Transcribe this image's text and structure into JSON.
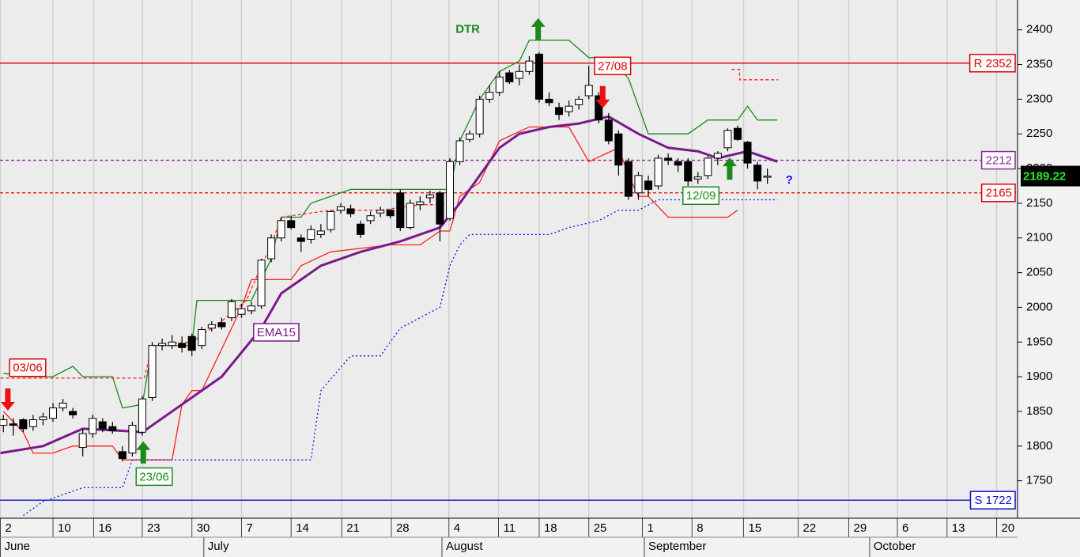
{
  "chart_data": {
    "type": "candlestick",
    "xlim": [
      -0.34,
      102.05
    ],
    "ylim": [
      1696,
      2443
    ],
    "yticks": [
      1750,
      1800,
      1850,
      1900,
      1950,
      2000,
      2050,
      2100,
      2150,
      2200,
      2250,
      2300,
      2350,
      2400
    ],
    "xticks": [
      {
        "value": -0.3,
        "label": "2"
      },
      {
        "value": 5,
        "label": "10"
      },
      {
        "value": 9.1,
        "label": "16"
      },
      {
        "value": 14,
        "label": "23"
      },
      {
        "value": 19,
        "label": "30"
      },
      {
        "value": 24,
        "label": "7"
      },
      {
        "value": 29,
        "label": "14"
      },
      {
        "value": 34.1,
        "label": "21"
      },
      {
        "value": 39.1,
        "label": "28"
      },
      {
        "value": 44.9,
        "label": "4"
      },
      {
        "value": 49.9,
        "label": "11"
      },
      {
        "value": 54,
        "label": "18"
      },
      {
        "value": 59,
        "label": "25"
      },
      {
        "value": 64.4,
        "label": "1"
      },
      {
        "value": 69.4,
        "label": "8"
      },
      {
        "value": 74.6,
        "label": "15"
      },
      {
        "value": 80.1,
        "label": "22"
      },
      {
        "value": 85.2,
        "label": "29"
      },
      {
        "value": 90.1,
        "label": "6"
      },
      {
        "value": 95.1,
        "label": "13"
      },
      {
        "value": 100.1,
        "label": "20"
      }
    ],
    "months": [
      {
        "value": -0.3,
        "label": "June"
      },
      {
        "value": 20.2,
        "label": "July"
      },
      {
        "value": 44.2,
        "label": "August"
      },
      {
        "value": 64.6,
        "label": "September"
      },
      {
        "value": 87.3,
        "label": "October"
      }
    ],
    "grid": true,
    "up_color": "#ffffff",
    "down_color": "#000000",
    "x": [
      0,
      1,
      2,
      3,
      4,
      5,
      6,
      7,
      8,
      9,
      10,
      11,
      12,
      13,
      14,
      15,
      16,
      17,
      18,
      19,
      20,
      21,
      22,
      23,
      24,
      25,
      26,
      27,
      28,
      29,
      30,
      31,
      32,
      33,
      34,
      35,
      36,
      37,
      38,
      39,
      40,
      41,
      42,
      43,
      44,
      45,
      46,
      47,
      48,
      49,
      50,
      51,
      52,
      53,
      54,
      55,
      56,
      57,
      58,
      59,
      60,
      61,
      62,
      63,
      64,
      65,
      66,
      67,
      68,
      69,
      70,
      71,
      72,
      73,
      74,
      75,
      76,
      77
    ],
    "open": [
      1830,
      1832,
      1838,
      1828,
      1838,
      1840,
      1855,
      1850,
      1798,
      1818,
      1835,
      1828,
      1792,
      1790,
      1820,
      1870,
      1945,
      1945,
      1948,
      1958,
      1945,
      1970,
      1978,
      1985,
      1990,
      1995,
      2002,
      2070,
      2100,
      2125,
      2100,
      2098,
      2105,
      2112,
      2140,
      2142,
      2120,
      2125,
      2136,
      2140,
      2165,
      2115,
      2148,
      2158,
      2165,
      2128,
      2210,
      2242,
      2250,
      2300,
      2310,
      2338,
      2330,
      2340,
      2365,
      2300,
      2288,
      2282,
      2292,
      2305,
      2305,
      2270,
      2250,
      2210,
      2165,
      2182,
      2175,
      2215,
      2210,
      2210,
      2185,
      2190,
      2215,
      2230,
      2258,
      2238,
      2205,
      2188
    ],
    "high": [
      1845,
      1840,
      1840,
      1845,
      1848,
      1862,
      1868,
      1855,
      1825,
      1845,
      1840,
      1835,
      1800,
      1835,
      1872,
      1950,
      1955,
      1960,
      1958,
      1962,
      1972,
      1980,
      1985,
      2012,
      2005,
      2008,
      2070,
      2105,
      2130,
      2132,
      2105,
      2118,
      2120,
      2140,
      2150,
      2148,
      2125,
      2138,
      2145,
      2142,
      2170,
      2155,
      2160,
      2168,
      2168,
      2215,
      2245,
      2255,
      2305,
      2320,
      2340,
      2342,
      2350,
      2362,
      2368,
      2310,
      2295,
      2298,
      2305,
      2348,
      2310,
      2280,
      2255,
      2215,
      2195,
      2190,
      2220,
      2222,
      2215,
      2215,
      2195,
      2218,
      2225,
      2258,
      2262,
      2240,
      2210,
      2200
    ],
    "low": [
      1820,
      1815,
      1820,
      1822,
      1830,
      1835,
      1850,
      1840,
      1785,
      1812,
      1820,
      1818,
      1778,
      1785,
      1815,
      1865,
      1938,
      1940,
      1935,
      1930,
      1940,
      1965,
      1968,
      1980,
      1985,
      1990,
      1998,
      2065,
      2095,
      2112,
      2080,
      2092,
      2100,
      2108,
      2135,
      2130,
      2100,
      2120,
      2130,
      2128,
      2110,
      2112,
      2140,
      2150,
      2095,
      2125,
      2205,
      2238,
      2245,
      2295,
      2305,
      2322,
      2320,
      2335,
      2295,
      2290,
      2270,
      2275,
      2285,
      2300,
      2265,
      2235,
      2190,
      2155,
      2155,
      2160,
      2170,
      2205,
      2195,
      2175,
      2178,
      2185,
      2205,
      2225,
      2240,
      2200,
      2170,
      2178
    ],
    "close": [
      1838,
      1830,
      1825,
      1838,
      1842,
      1855,
      1862,
      1845,
      1818,
      1840,
      1825,
      1822,
      1782,
      1830,
      1868,
      1945,
      1948,
      1950,
      1942,
      1938,
      1968,
      1975,
      1972,
      2008,
      1998,
      2002,
      2068,
      2100,
      2125,
      2115,
      2095,
      2112,
      2110,
      2138,
      2145,
      2135,
      2105,
      2132,
      2140,
      2132,
      2115,
      2150,
      2152,
      2162,
      2120,
      2210,
      2240,
      2250,
      2300,
      2310,
      2332,
      2325,
      2340,
      2355,
      2300,
      2295,
      2278,
      2290,
      2300,
      2320,
      2270,
      2240,
      2205,
      2160,
      2190,
      2170,
      2215,
      2212,
      2205,
      2182,
      2188,
      2215,
      2222,
      2255,
      2242,
      2208,
      2182,
      2189.22
    ],
    "last_price": 2189.22,
    "lines": [
      {
        "color": "#1a8a1a",
        "dash": "solid",
        "weight": "normal",
        "x": [
          0,
          2,
          5,
          7,
          8,
          11,
          12,
          14,
          15,
          19,
          19.5,
          25,
          27,
          28,
          30,
          31,
          33,
          35,
          45,
          46,
          48,
          50,
          52,
          53,
          57,
          59,
          61,
          63,
          65,
          69,
          71,
          74,
          75,
          76,
          78
        ],
        "values": [
          1905,
          1900,
          1900,
          1915,
          1900,
          1900,
          1855,
          1860,
          1945,
          1945,
          2010,
          2010,
          2070,
          2130,
          2130,
          2150,
          2160,
          2170,
          2170,
          2240,
          2300,
          2340,
          2355,
          2385,
          2385,
          2360,
          2360,
          2330,
          2250,
          2250,
          2270,
          2270,
          2290,
          2270,
          2270
        ]
      },
      {
        "color": "#ff2020",
        "dash": "solid",
        "weight": "normal",
        "x": [
          0,
          2,
          3,
          5,
          7,
          11,
          12,
          14,
          17,
          18,
          19,
          20,
          24,
          25,
          29,
          30,
          33,
          39,
          42,
          44,
          45,
          46,
          48,
          50,
          53,
          57,
          59,
          62,
          63,
          64,
          65,
          67,
          73,
          74
        ],
        "values": [
          1850,
          1820,
          1790,
          1790,
          1800,
          1800,
          1780,
          1780,
          1780,
          1860,
          1880,
          1880,
          2000,
          2040,
          2040,
          2060,
          2080,
          2090,
          2090,
          2110,
          2110,
          2160,
          2180,
          2240,
          2260,
          2260,
          2210,
          2230,
          2190,
          2160,
          2160,
          2130,
          2130,
          2140
        ]
      },
      {
        "color": "#ff2020",
        "dash": "dashed",
        "weight": "normal",
        "x": [
          -0.3,
          14.2,
          15,
          19,
          22,
          24.5,
          26,
          27,
          28,
          33,
          38,
          42,
          44.5
        ],
        "values": [
          1898,
          1898,
          1945,
          1950,
          1980,
          2010,
          2060,
          2090,
          2130,
          2140,
          2140,
          2148,
          2148
        ]
      },
      {
        "color": "#ff2020",
        "dash": "dashed",
        "weight": "normal",
        "x": [
          73.4,
          74.2,
          74.2,
          78.1
        ],
        "values": [
          2343,
          2343,
          2328,
          2328
        ]
      },
      {
        "color": "#1010ee",
        "dash": "dotted",
        "weight": "normal",
        "x": [
          2,
          4,
          6,
          8,
          12,
          13,
          14,
          31,
          32,
          35,
          38,
          40,
          44,
          45,
          46,
          47,
          55,
          57,
          60,
          62,
          64,
          66,
          78
        ],
        "values": [
          1700,
          1720,
          1730,
          1740,
          1740,
          1780,
          1780,
          1780,
          1880,
          1930,
          1930,
          1970,
          2000,
          2060,
          2090,
          2105,
          2105,
          2115,
          2125,
          2140,
          2140,
          2155,
          2155
        ]
      },
      {
        "color": "#7a1a8a",
        "dash": "solid",
        "weight": "bold",
        "x": [
          -0.3,
          4,
          8,
          12,
          14,
          18,
          22,
          26,
          28,
          32,
          36,
          40,
          44,
          46,
          48,
          50,
          52,
          55,
          58,
          61,
          64,
          67,
          70,
          72,
          75,
          78
        ],
        "values": [
          1790,
          1800,
          1825,
          1822,
          1820,
          1860,
          1900,
          1970,
          2020,
          2060,
          2080,
          2095,
          2115,
          2150,
          2190,
          2230,
          2250,
          2260,
          2265,
          2275,
          2250,
          2230,
          2225,
          2215,
          2225,
          2210
        ]
      }
    ],
    "levels": [
      {
        "value": 2352,
        "label": "R 2352",
        "color": "#e00000",
        "dash": "solid"
      },
      {
        "value": 2212,
        "label": "2212",
        "color": "#8a2a9a",
        "dash": "dashed"
      },
      {
        "value": 2165,
        "label": "2165",
        "color": "#e00000",
        "dash": "dashed"
      },
      {
        "value": 1722,
        "label": "S 1722",
        "color": "#1010cc",
        "dash": "solid"
      }
    ],
    "annotations": [
      {
        "text": "03/06",
        "x": 2.45,
        "y": 1913,
        "color": "#e00000",
        "box": true
      },
      {
        "text": "23/06",
        "x": 15.2,
        "y": 1756,
        "color": "#1a8a1a",
        "box": true
      },
      {
        "text": "27/08",
        "x": 61.4,
        "y": 2348,
        "color": "#e00000",
        "box": true
      },
      {
        "text": "12/09",
        "x": 70.3,
        "y": 2161,
        "color": "#1a8a1a",
        "box": true
      },
      {
        "text": "EMA15",
        "x": 27.5,
        "y": 1964,
        "color": "#7a1a8a",
        "box": true
      },
      {
        "text": "DTR",
        "x": 46.8,
        "y": 2400,
        "color": "#1a8a1a",
        "box": false
      },
      {
        "text": "?",
        "x": 79.2,
        "y": 2183,
        "color": "#1010ee",
        "box": false
      }
    ],
    "signals": [
      {
        "x": 0.45,
        "y": 1867,
        "direction": "down",
        "color": "#ee1010"
      },
      {
        "x": 60.4,
        "y": 2303,
        "direction": "down",
        "color": "#ee1010"
      },
      {
        "x": 14.1,
        "y": 1791,
        "direction": "up",
        "color": "#1a8a1a"
      },
      {
        "x": 53.9,
        "y": 2401,
        "direction": "up",
        "color": "#1a8a1a"
      },
      {
        "x": 73.2,
        "y": 2200,
        "direction": "up",
        "color": "#1a8a1a"
      }
    ]
  }
}
